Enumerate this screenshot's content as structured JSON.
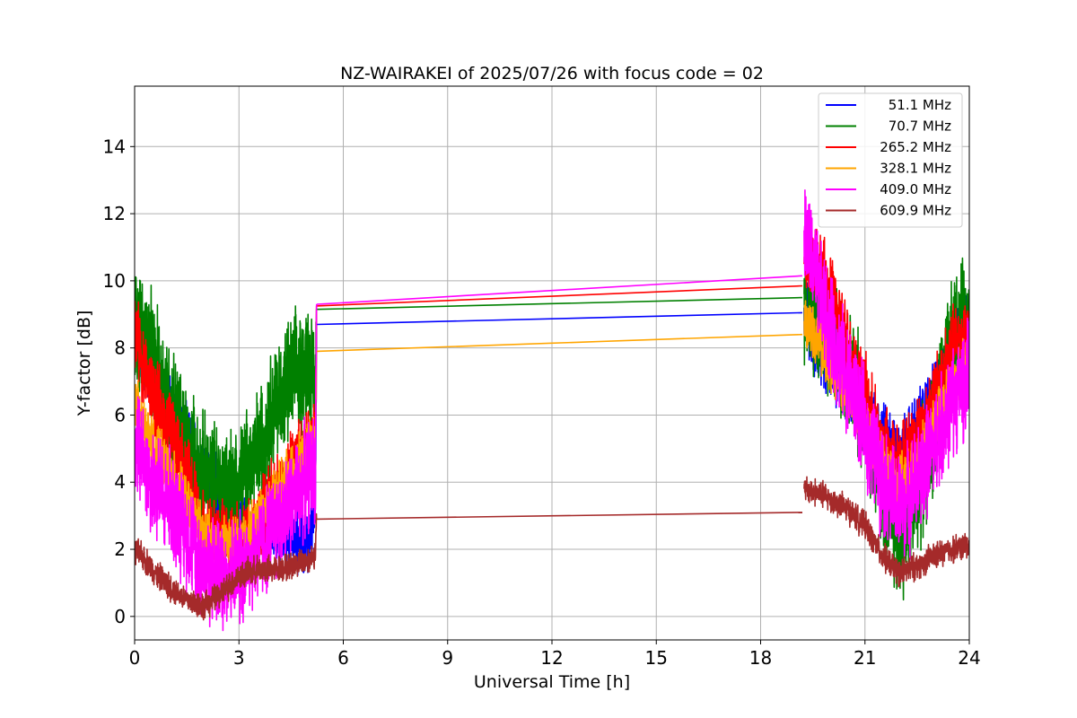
{
  "chart_data": {
    "type": "line",
    "title": "NZ-WAIRAKEI of 2025/07/26 with focus code = 02",
    "xlabel": "Universal Time [h]",
    "ylabel": "Y-factor [dB]",
    "xlim": [
      0,
      24
    ],
    "ylim": [
      -0.7,
      15.8
    ],
    "xticks": [
      0,
      3,
      6,
      9,
      12,
      15,
      18,
      21,
      24
    ],
    "yticks": [
      0,
      2,
      4,
      6,
      8,
      10,
      12,
      14
    ],
    "grid": true,
    "legend_position": "top-right",
    "series": [
      {
        "name": "51.1 MHz",
        "color": "#0000ff",
        "segments": [
          [
            [
              0,
              8.6
            ],
            [
              0.3,
              7.6
            ],
            [
              0.6,
              6.9
            ],
            [
              1,
              6.3
            ],
            [
              1.5,
              5.2
            ],
            [
              2,
              4.4
            ],
            [
              2.5,
              3.6
            ],
            [
              3,
              2.6
            ],
            [
              3.5,
              2.4
            ],
            [
              4,
              2.7
            ],
            [
              4.5,
              2.4
            ],
            [
              5,
              2.2
            ],
            [
              5.2,
              3.6
            ],
            [
              5.23,
              8.7
            ]
          ],
          [
            [
              5.23,
              8.7
            ],
            [
              19.2,
              9.05
            ]
          ],
          [
            [
              19.25,
              9.2
            ],
            [
              19.6,
              8.0
            ],
            [
              20,
              7.5
            ],
            [
              20.5,
              6.9
            ],
            [
              21,
              6.2
            ],
            [
              21.5,
              5.4
            ],
            [
              22,
              4.8
            ],
            [
              22.5,
              5.6
            ],
            [
              23,
              6.6
            ],
            [
              23.5,
              8.0
            ],
            [
              24,
              8.8
            ]
          ]
        ]
      },
      {
        "name": "70.7 MHz",
        "color": "#008000",
        "segments": [
          [
            [
              0,
              8.9
            ],
            [
              0.3,
              8.2
            ],
            [
              0.6,
              7.4
            ],
            [
              1,
              6.5
            ],
            [
              1.5,
              5.0
            ],
            [
              2,
              4.1
            ],
            [
              2.5,
              3.9
            ],
            [
              3,
              3.9
            ],
            [
              3.5,
              4.8
            ],
            [
              4,
              6.3
            ],
            [
              4.5,
              7.0
            ],
            [
              5,
              7.6
            ],
            [
              5.2,
              6.6
            ],
            [
              5.23,
              9.15
            ]
          ],
          [
            [
              5.23,
              9.15
            ],
            [
              19.2,
              9.5
            ]
          ],
          [
            [
              19.25,
              9.6
            ],
            [
              19.6,
              9.1
            ],
            [
              20,
              8.4
            ],
            [
              20.5,
              7.4
            ],
            [
              21,
              6.1
            ],
            [
              21.5,
              3.7
            ],
            [
              22,
              2.2
            ],
            [
              22.5,
              3.6
            ],
            [
              23,
              5.7
            ],
            [
              23.5,
              8.1
            ],
            [
              24,
              9.1
            ]
          ]
        ]
      },
      {
        "name": "265.2 MHz",
        "color": "#ff0000",
        "segments": [
          [
            [
              0,
              8.6
            ],
            [
              0.3,
              7.3
            ],
            [
              0.6,
              6.4
            ],
            [
              1,
              5.6
            ],
            [
              1.5,
              4.3
            ],
            [
              2,
              2.4
            ],
            [
              2.5,
              2.3
            ],
            [
              3,
              2.2
            ],
            [
              3.5,
              2.6
            ],
            [
              4,
              3.6
            ],
            [
              4.5,
              4.3
            ],
            [
              5,
              5.3
            ],
            [
              5.2,
              5.4
            ],
            [
              5.23,
              9.25
            ]
          ],
          [
            [
              5.23,
              9.25
            ],
            [
              19.2,
              9.85
            ]
          ],
          [
            [
              19.25,
              10.5
            ],
            [
              19.6,
              10.7
            ],
            [
              20,
              9.6
            ],
            [
              20.5,
              8.1
            ],
            [
              21,
              6.6
            ],
            [
              21.5,
              5.1
            ],
            [
              22,
              4.6
            ],
            [
              22.5,
              5.3
            ],
            [
              23,
              6.6
            ],
            [
              23.5,
              8.0
            ],
            [
              24,
              8.6
            ]
          ]
        ]
      },
      {
        "name": "328.1 MHz",
        "color": "#ffa500",
        "segments": [
          [
            [
              0,
              6.4
            ],
            [
              0.3,
              5.6
            ],
            [
              0.6,
              4.9
            ],
            [
              1,
              4.3
            ],
            [
              1.5,
              3.4
            ],
            [
              2,
              2.4
            ],
            [
              2.5,
              2.1
            ],
            [
              3,
              2.2
            ],
            [
              3.5,
              2.8
            ],
            [
              4,
              3.6
            ],
            [
              4.5,
              4.2
            ],
            [
              5,
              5.0
            ],
            [
              5.2,
              5.2
            ],
            [
              5.23,
              7.9
            ]
          ],
          [
            [
              5.23,
              7.9
            ],
            [
              19.2,
              8.4
            ]
          ],
          [
            [
              19.25,
              8.8
            ],
            [
              19.6,
              8.4
            ],
            [
              20,
              7.5
            ],
            [
              20.5,
              6.6
            ],
            [
              21,
              5.6
            ],
            [
              21.5,
              4.6
            ],
            [
              22,
              3.9
            ],
            [
              22.5,
              4.5
            ],
            [
              23,
              5.7
            ],
            [
              23.5,
              6.9
            ],
            [
              24,
              7.6
            ]
          ]
        ]
      },
      {
        "name": "409.0 MHz",
        "color": "#ff00ff",
        "segments": [
          [
            [
              0,
              5.3
            ],
            [
              0.3,
              4.5
            ],
            [
              0.6,
              3.9
            ],
            [
              1,
              3.4
            ],
            [
              1.5,
              2.5
            ],
            [
              2,
              1.5
            ],
            [
              2.5,
              1.2
            ],
            [
              3,
              1.4
            ],
            [
              3.5,
              1.9
            ],
            [
              4,
              2.6
            ],
            [
              4.5,
              3.4
            ],
            [
              5,
              4.2
            ],
            [
              5.2,
              4.5
            ],
            [
              5.23,
              9.3
            ]
          ],
          [
            [
              5.23,
              9.3
            ],
            [
              19.2,
              10.15
            ]
          ],
          [
            [
              19.25,
              11.5
            ],
            [
              19.6,
              10.0
            ],
            [
              20,
              8.5
            ],
            [
              20.5,
              7.2
            ],
            [
              21,
              5.6
            ],
            [
              21.5,
              4.1
            ],
            [
              22,
              3.1
            ],
            [
              22.5,
              4.0
            ],
            [
              23,
              5.1
            ],
            [
              23.5,
              6.4
            ],
            [
              24,
              7.2
            ]
          ]
        ]
      },
      {
        "name": "609.9 MHz",
        "color": "#a52a2a",
        "segments": [
          [
            [
              0,
              2.0
            ],
            [
              0.3,
              1.7
            ],
            [
              0.6,
              1.3
            ],
            [
              1,
              0.9
            ],
            [
              1.5,
              0.5
            ],
            [
              2,
              0.3
            ],
            [
              2.5,
              0.7
            ],
            [
              3,
              1.2
            ],
            [
              3.5,
              1.4
            ],
            [
              4,
              1.4
            ],
            [
              4.5,
              1.5
            ],
            [
              5,
              1.7
            ],
            [
              5.2,
              1.9
            ],
            [
              5.23,
              2.9
            ]
          ],
          [
            [
              5.23,
              2.9
            ],
            [
              19.2,
              3.1
            ]
          ],
          [
            [
              19.25,
              3.8
            ],
            [
              19.6,
              3.7
            ],
            [
              20,
              3.5
            ],
            [
              20.5,
              3.2
            ],
            [
              21,
              2.7
            ],
            [
              21.5,
              1.8
            ],
            [
              22,
              1.3
            ],
            [
              22.5,
              1.5
            ],
            [
              23,
              1.8
            ],
            [
              23.5,
              2.0
            ],
            [
              24,
              2.1
            ]
          ]
        ]
      }
    ]
  }
}
